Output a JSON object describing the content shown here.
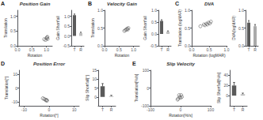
{
  "chart_data": [
    {
      "type": "scatter",
      "title": "Position Gain",
      "annotations": [
        "A"
      ],
      "x": [
        0.92,
        0.97,
        1.0,
        1.02,
        1.03,
        1.04
      ],
      "values": [
        0.22,
        0.2,
        0.25,
        0.28,
        0.3,
        0.23
      ],
      "xlabel": "Rotation",
      "ylabel": "Translation",
      "color": "#555555",
      "xlim": [
        0,
        1.2
      ],
      "ylim": [
        0,
        1.2
      ],
      "xticks": [
        {
          "value": 0,
          "label": "0.0"
        },
        0.5,
        {
          "value": 1,
          "label": "1.0"
        }
      ],
      "yticks": [
        {
          "value": 0,
          "label": "0.0"
        },
        0.5,
        {
          "value": 1,
          "label": "1.0"
        }
      ],
      "grid": false
    },
    {
      "type": "bar",
      "categories": [
        "T",
        "R"
      ],
      "values": [
        1.05,
        0.15
      ],
      "errors": [
        0.06,
        0.04
      ],
      "colors": [
        "#5a5a5a",
        "#c0c0c0"
      ],
      "ylabel": "Gain Shortfall",
      "ylim": [
        -0.5,
        1.3
      ],
      "yticks": [
        -0.5,
        {
          "value": 0,
          "label": "0.0"
        },
        0.5,
        {
          "value": 1,
          "label": "1.0"
        }
      ],
      "grid": false
    },
    {
      "type": "scatter",
      "title": "Velocity Gain",
      "annotations": [
        "B"
      ],
      "x": [
        0.68,
        0.72,
        0.75,
        0.78,
        0.8,
        0.82
      ],
      "values": [
        0.42,
        0.44,
        0.46,
        0.48,
        0.46,
        0.5
      ],
      "xlabel": "Rotation",
      "ylabel": "Translation",
      "color": "#555555",
      "xlim": [
        0,
        1.2
      ],
      "ylim": [
        0,
        1.0
      ],
      "xticks": [
        {
          "value": 0,
          "label": "0.0"
        },
        0.5,
        {
          "value": 1,
          "label": "1.0"
        }
      ],
      "yticks": [
        {
          "value": 0,
          "label": "0.0"
        },
        0.5,
        {
          "value": 1,
          "label": "1.0"
        }
      ],
      "grid": false
    },
    {
      "type": "bar",
      "categories": [
        "T",
        "R"
      ],
      "values": [
        0.55,
        0.1
      ],
      "errors": [
        0.05,
        0.03
      ],
      "colors": [
        "#5a5a5a",
        "#c0c0c0"
      ],
      "ylabel": "Gain Shortfall",
      "ylim": [
        -0.5,
        1.0
      ],
      "yticks": [
        -0.5,
        {
          "value": 0,
          "label": "0.0"
        },
        0.5,
        {
          "value": 1,
          "label": "1.0"
        }
      ],
      "grid": false
    },
    {
      "type": "scatter",
      "title": "DVA",
      "annotations": [
        "C"
      ],
      "x": [
        0.25,
        0.35,
        0.38,
        0.42,
        0.45,
        0.48,
        0.52,
        0.55
      ],
      "values": [
        0.55,
        0.6,
        0.58,
        0.62,
        0.6,
        0.65,
        0.63,
        0.68
      ],
      "xlabel": "Rotation (logMAR)",
      "ylabel": "Translation (logMAR)",
      "color": "#555555",
      "xlim": [
        0,
        1
      ],
      "ylim": [
        0,
        1
      ],
      "xticks": [
        {
          "value": 0,
          "label": "0.0"
        },
        0.5,
        {
          "value": 1,
          "label": "1.0"
        }
      ],
      "yticks": [
        {
          "value": 0,
          "label": "0.0"
        },
        0.5,
        {
          "value": 1,
          "label": "1.0"
        }
      ],
      "grid": false
    },
    {
      "type": "bar",
      "categories": [
        "T",
        "R"
      ],
      "values": [
        0.65,
        0.55
      ],
      "errors": [
        0.06,
        0.05
      ],
      "colors": [
        "#5a5a5a",
        "#aaaaaa"
      ],
      "ylabel": "DVA(logMAR)",
      "ylim": [
        0,
        1.0
      ],
      "yticks": [
        {
          "value": 0,
          "label": "0.0"
        },
        0.5,
        {
          "value": 1,
          "label": "1.0"
        }
      ],
      "grid": false
    },
    {
      "type": "scatter",
      "title": "Position Error",
      "annotations": [
        "D"
      ],
      "x": [
        -2.5,
        -2.0,
        -1.5,
        -1.2,
        -1.0,
        -0.8
      ],
      "values": [
        -7.5,
        -8.0,
        -8.5,
        -9.0,
        -8.8,
        -9.2
      ],
      "xlabel": "Rotation[°]",
      "ylabel": "Translation[°]",
      "color": "#555555",
      "xlim": [
        -12,
        12
      ],
      "ylim": [
        -13,
        13
      ],
      "xticks": [
        -10,
        0,
        10
      ],
      "yticks": [
        -10,
        0,
        10
      ],
      "grid": false
    },
    {
      "type": "bar",
      "categories": [
        "T",
        "R"
      ],
      "values": [
        6.0,
        0.5
      ],
      "errors": [
        1.5,
        0.4
      ],
      "colors": [
        "#5a5a5a",
        "#c0c0c0"
      ],
      "ylabel": "Slip Shortfall[°]",
      "ylim": [
        -5,
        15
      ],
      "yticks": [
        0,
        5,
        10,
        15
      ],
      "grid": false
    },
    {
      "type": "scatter",
      "title": "Slip Velocity",
      "annotations": [
        "E"
      ],
      "x": [
        -5,
        -3,
        2,
        4,
        -8,
        -10,
        0
      ],
      "values": [
        -40,
        -50,
        -40,
        -50,
        -60,
        -65,
        -55
      ],
      "xlabel": "Rotation[%/s]",
      "ylabel": "Translation[%/s]",
      "color": "#555555",
      "xlim": [
        -100,
        100
      ],
      "ylim": [
        -100,
        100
      ],
      "xticks": [
        -100,
        0,
        100
      ],
      "yticks": [
        -100,
        0,
        100
      ],
      "grid": false
    },
    {
      "type": "bar",
      "categories": [
        "T",
        "R"
      ],
      "values": [
        20,
        3
      ],
      "errors": [
        6,
        2
      ],
      "colors": [
        "#5a5a5a",
        "#c0c0c0"
      ],
      "ylabel": "Slip Shortfall[%/s]",
      "ylim": [
        -20,
        50
      ],
      "yticks": [
        0,
        20,
        40
      ],
      "grid": false
    }
  ]
}
